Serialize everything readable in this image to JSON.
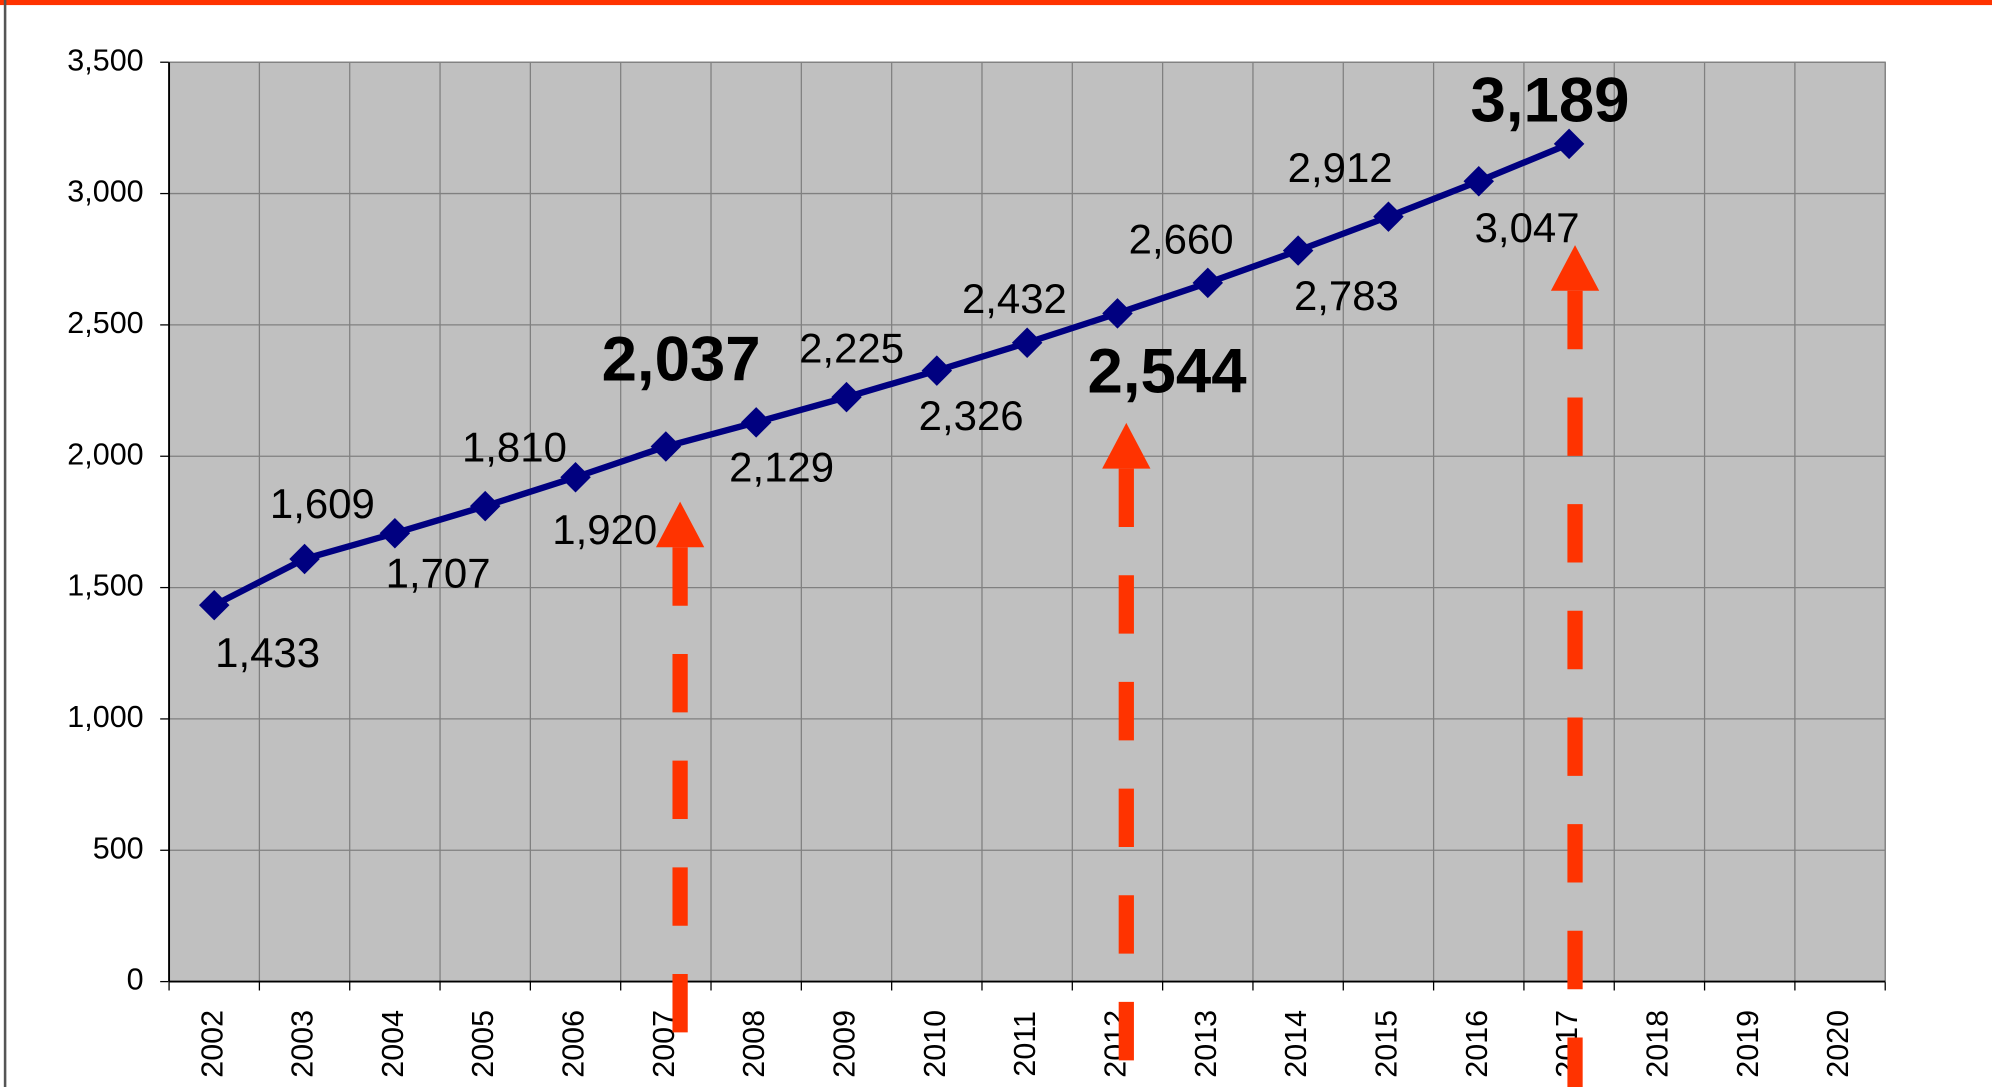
{
  "chart_data": {
    "type": "line",
    "categories": [
      "2002",
      "2003",
      "2004",
      "2005",
      "2006",
      "2007",
      "2008",
      "2009",
      "2010",
      "2011",
      "2012",
      "2013",
      "2014",
      "2015",
      "2016",
      "2017",
      "2018",
      "2019",
      "2020"
    ],
    "values": [
      1433,
      1609,
      1707,
      1810,
      1920,
      2037,
      2129,
      2225,
      2326,
      2432,
      2544,
      2660,
      2783,
      2912,
      3047,
      3189,
      null,
      null,
      null
    ],
    "value_labels": [
      "1,433",
      "1,609",
      "1,707",
      "1,810",
      "1,920",
      "2,037",
      "2,129",
      "2,225",
      "2,326",
      "2,432",
      "2,544",
      "2,660",
      "2,783",
      "2,912",
      "3,047",
      "3,189",
      null,
      null,
      null
    ],
    "color": "#000080",
    "ylim": [
      0,
      3500
    ],
    "yticks": [
      0,
      500,
      {
        "value": 1000,
        "label": "1,000"
      },
      {
        "value": 1500,
        "label": "1,500"
      },
      {
        "value": 2000,
        "label": "2,000"
      },
      {
        "value": 2500,
        "label": "2,500"
      },
      {
        "value": 3000,
        "label": "3,000"
      },
      {
        "value": 3500,
        "label": "3,500"
      }
    ],
    "grid": true
  }
}
